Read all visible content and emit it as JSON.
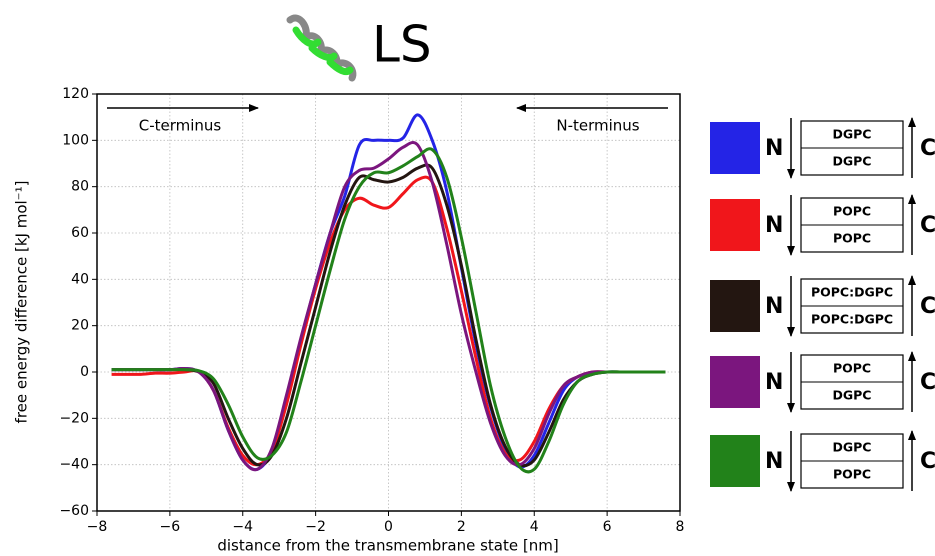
{
  "chart_data": {
    "type": "line",
    "title": "LS",
    "x_label": "distance from the transmembrane state [nm]",
    "y_label": "free energy difference [kJ mol⁻¹]",
    "xlim": [
      -8,
      8
    ],
    "ylim": [
      -60,
      120
    ],
    "xticks": [
      {
        "value": -8,
        "label": "−8"
      },
      {
        "value": -6,
        "label": "−6"
      },
      {
        "value": -4,
        "label": "−4"
      },
      {
        "value": -2,
        "label": "−2"
      },
      0,
      2,
      4,
      6,
      8
    ],
    "yticks": [
      {
        "value": -60,
        "label": "−60"
      },
      {
        "value": -40,
        "label": "−40"
      },
      {
        "value": -20,
        "label": "−20"
      },
      0,
      20,
      40,
      60,
      80,
      100,
      120
    ],
    "grid": true,
    "annotations": [
      "C-terminus",
      "N-terminus"
    ],
    "legend_left_label": "N",
    "legend_right_label": "C",
    "x": [
      -7.6,
      -7.2,
      -6.8,
      -6.4,
      -6.0,
      -5.6,
      -5.2,
      -4.8,
      -4.4,
      -4.0,
      -3.6,
      -3.2,
      -2.8,
      -2.4,
      -2.0,
      -1.6,
      -1.2,
      -0.8,
      -0.4,
      0,
      0.4,
      0.8,
      1.2,
      1.6,
      2.0,
      2.4,
      2.8,
      3.2,
      3.6,
      4.0,
      4.4,
      4.8,
      5.2,
      5.6,
      6.0,
      6.4,
      6.8,
      7.2,
      7.6
    ],
    "series": [
      {
        "top": "DGPC",
        "bottom": "DGPC",
        "color": "#2424e6",
        "values": [
          1,
          1,
          1,
          1,
          1,
          1.5,
          0,
          -8,
          -25,
          -38,
          -42,
          -34,
          -12,
          14,
          38,
          60,
          76,
          98,
          100,
          100,
          101,
          111,
          100,
          78,
          45,
          12,
          -15,
          -33,
          -41,
          -36,
          -22,
          -8,
          -2,
          -0.5,
          0,
          0,
          0,
          0,
          0
        ]
      },
      {
        "top": "POPC",
        "bottom": "POPC",
        "color": "#f0161b",
        "values": [
          -1,
          -1,
          -1,
          -0.5,
          -0.5,
          0,
          0,
          -8,
          -24,
          -36,
          -40,
          -34,
          -14,
          12,
          36,
          56,
          70,
          75,
          72,
          71,
          77,
          83,
          82,
          62,
          35,
          6,
          -20,
          -35,
          -38,
          -30,
          -16,
          -6,
          -2,
          0,
          0,
          0,
          0,
          0,
          0
        ]
      },
      {
        "top": "POPC:DGPC",
        "bottom": "POPC:DGPC",
        "color": "#231611",
        "values": [
          1,
          1,
          1,
          1,
          1,
          1,
          0,
          -5,
          -20,
          -33,
          -40,
          -36,
          -20,
          4,
          28,
          52,
          72,
          84,
          83,
          82,
          84,
          88,
          88,
          72,
          46,
          14,
          -14,
          -32,
          -40,
          -38,
          -26,
          -12,
          -4,
          -1,
          0,
          0,
          0,
          0,
          0
        ]
      },
      {
        "top": "POPC",
        "bottom": "DGPC",
        "color": "#7b167e",
        "values": [
          1,
          1,
          1,
          1,
          1,
          1.5,
          0,
          -8,
          -25,
          -38,
          -42,
          -33,
          -10,
          15,
          38,
          60,
          80,
          87,
          88,
          92,
          97,
          98,
          82,
          55,
          25,
          0,
          -22,
          -36,
          -40,
          -33,
          -18,
          -6,
          -2,
          0,
          0,
          0,
          0,
          0,
          0
        ]
      },
      {
        "top": "DGPC",
        "bottom": "POPC",
        "color": "#22821a",
        "values": [
          1,
          1,
          1,
          1,
          1,
          1,
          0.5,
          -3,
          -14,
          -28,
          -37,
          -36,
          -26,
          -4,
          20,
          44,
          66,
          80,
          86,
          86,
          89,
          93,
          96,
          84,
          58,
          26,
          -6,
          -28,
          -41,
          -42,
          -30,
          -14,
          -4,
          -1,
          0,
          0,
          0,
          0,
          0
        ]
      }
    ]
  }
}
